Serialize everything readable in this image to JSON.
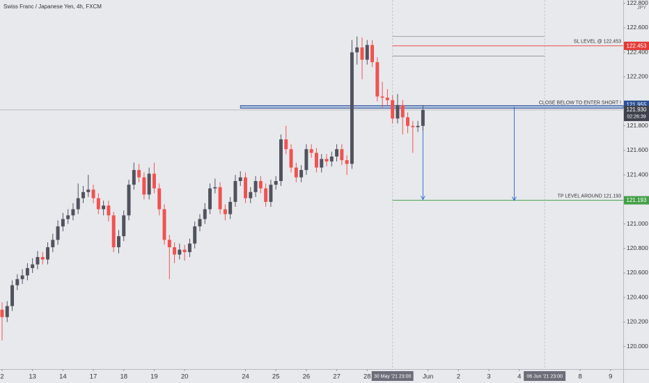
{
  "chart_data": {
    "type": "candlestick",
    "title": "Swiss Franc / Japanese Yen, 4h, FXCM",
    "currency": "JPY",
    "up_color": "#50535e",
    "down_color": "#ef5350",
    "open": [
      120.3,
      120.24,
      120.33,
      120.5,
      120.55,
      120.58,
      120.64,
      120.67,
      120.73,
      120.71,
      120.81,
      120.87,
      120.98,
      121.04,
      121.07,
      121.12,
      121.21,
      121.26,
      121.28,
      121.21,
      121.12,
      121.15,
      121.07,
      120.81,
      120.9,
      121.07,
      121.32,
      121.44,
      121.38,
      121.24,
      121.41,
      121.29,
      121.12,
      120.87,
      120.81,
      120.75,
      120.79,
      120.77,
      120.84,
      120.98,
      121.04,
      121.12,
      121.29,
      121.3,
      121.12,
      121.08,
      121.18,
      121.35,
      121.38,
      121.21,
      121.26,
      121.35,
      121.29,
      121.18,
      121.32,
      121.35,
      121.69,
      121.61,
      121.46,
      121.38,
      121.44,
      121.61,
      121.58,
      121.46,
      121.53,
      121.51,
      121.55,
      121.61,
      121.52,
      121.49,
      122.4,
      122.44,
      122.34,
      122.46,
      122.32,
      122.04,
      122.03,
      122.01,
      121.86,
      121.97,
      121.87,
      121.8,
      121.79,
      121.8
    ],
    "high": [
      120.36,
      120.37,
      120.54,
      120.59,
      120.63,
      120.68,
      120.72,
      120.78,
      120.77,
      120.85,
      120.92,
      121.03,
      121.09,
      121.12,
      121.17,
      121.33,
      121.31,
      121.4,
      121.32,
      121.25,
      121.19,
      121.19,
      121.1,
      120.95,
      121.11,
      121.36,
      121.5,
      121.49,
      121.42,
      121.46,
      121.5,
      121.33,
      121.16,
      120.91,
      120.85,
      120.84,
      120.83,
      120.88,
      121.02,
      121.08,
      121.17,
      121.33,
      121.37,
      121.34,
      121.16,
      121.22,
      121.4,
      121.43,
      121.42,
      121.3,
      121.39,
      121.39,
      121.33,
      121.36,
      121.39,
      121.73,
      121.8,
      121.65,
      121.5,
      121.48,
      121.65,
      121.65,
      121.62,
      121.57,
      121.57,
      121.59,
      121.65,
      121.65,
      121.56,
      122.5,
      122.53,
      122.52,
      122.5,
      122.5,
      122.36,
      122.16,
      122.1,
      122.05,
      122.06,
      122.01,
      121.91,
      121.84,
      121.84,
      121.97
    ],
    "low": [
      120.05,
      120.2,
      120.29,
      120.46,
      120.51,
      120.54,
      120.6,
      120.63,
      120.67,
      120.67,
      120.77,
      120.83,
      120.94,
      121.0,
      121.03,
      121.08,
      121.17,
      121.22,
      121.17,
      121.08,
      121.07,
      121.02,
      120.77,
      120.76,
      120.86,
      121.03,
      121.28,
      121.34,
      121.2,
      121.2,
      121.25,
      121.07,
      120.83,
      120.55,
      120.68,
      120.71,
      120.7,
      120.73,
      120.8,
      120.94,
      121.0,
      121.08,
      121.25,
      121.08,
      121.03,
      121.04,
      121.14,
      121.31,
      121.17,
      121.17,
      121.22,
      121.25,
      121.14,
      121.14,
      121.28,
      121.31,
      121.57,
      121.42,
      121.34,
      121.34,
      121.4,
      121.54,
      121.42,
      121.42,
      121.47,
      121.47,
      121.51,
      121.48,
      121.4,
      121.45,
      122.3,
      122.18,
      122.3,
      122.28,
      122.0,
      121.95,
      121.97,
      121.82,
      121.82,
      121.73,
      121.74,
      121.58,
      121.75,
      121.76
    ],
    "close": [
      120.24,
      120.33,
      120.5,
      120.55,
      120.58,
      120.64,
      120.67,
      120.73,
      120.71,
      120.81,
      120.87,
      120.98,
      121.04,
      121.07,
      121.12,
      121.21,
      121.26,
      121.28,
      121.21,
      121.12,
      121.15,
      121.07,
      120.81,
      120.9,
      121.07,
      121.32,
      121.44,
      121.38,
      121.24,
      121.41,
      121.29,
      121.12,
      120.87,
      120.81,
      120.75,
      120.79,
      120.77,
      120.84,
      120.98,
      121.04,
      121.12,
      121.29,
      121.3,
      121.12,
      121.08,
      121.18,
      121.35,
      121.38,
      121.21,
      121.26,
      121.35,
      121.29,
      121.18,
      121.32,
      121.35,
      121.69,
      121.61,
      121.46,
      121.38,
      121.44,
      121.61,
      121.58,
      121.46,
      121.53,
      121.51,
      121.55,
      121.61,
      121.52,
      121.49,
      122.4,
      122.44,
      122.34,
      122.46,
      122.32,
      122.04,
      122.03,
      122.01,
      121.86,
      121.97,
      121.87,
      121.8,
      121.79,
      121.8,
      121.93
    ],
    "xlim": [
      -0.41,
      122.5
    ],
    "ylim": [
      119.816,
      122.827
    ],
    "xticks": [
      {
        "value": 0,
        "label": "2"
      },
      {
        "value": 6,
        "label": "13"
      },
      {
        "value": 12,
        "label": "14"
      },
      {
        "value": 18,
        "label": "17"
      },
      {
        "value": 24,
        "label": "18"
      },
      {
        "value": 30,
        "label": "19"
      },
      {
        "value": 36,
        "label": "20"
      },
      {
        "value": 48,
        "label": "24"
      },
      {
        "value": 54,
        "label": "25"
      },
      {
        "value": 60,
        "label": "26"
      },
      {
        "value": 66,
        "label": "27"
      },
      {
        "value": 72,
        "label": "28"
      },
      {
        "value": 84,
        "label": "Jun"
      },
      {
        "value": 90,
        "label": "2"
      },
      {
        "value": 96,
        "label": "3"
      },
      {
        "value": 102,
        "label": "4"
      },
      {
        "value": 114,
        "label": "8"
      },
      {
        "value": 120,
        "label": "9"
      }
    ],
    "yticks": [
      {
        "value": 120.0,
        "label": "120.000"
      },
      {
        "value": 120.2,
        "label": "120.200"
      },
      {
        "value": 120.4,
        "label": "120.400"
      },
      {
        "value": 120.6,
        "label": "120.600"
      },
      {
        "value": 120.8,
        "label": "120.800"
      },
      {
        "value": 121.0,
        "label": "121.000"
      },
      {
        "value": 121.4,
        "label": "121.400"
      },
      {
        "value": 121.6,
        "label": "121.600"
      },
      {
        "value": 121.8,
        "label": "121.800"
      },
      {
        "value": 122.2,
        "label": "122.200"
      },
      {
        "value": 122.4,
        "label": "122.400"
      },
      {
        "value": 122.6,
        "label": "122.600"
      },
      {
        "value": 122.8,
        "label": "122.800"
      }
    ],
    "time_markers": [
      {
        "value": 77,
        "label": "30 May '21 23:00"
      },
      {
        "value": 107,
        "label": "06 Jun '21 23:00"
      }
    ],
    "range_lines": [
      122.53,
      122.37
    ],
    "levels": [
      {
        "label": "SL LEVEL @ 122.453",
        "value": 122.453,
        "color": "#e53935",
        "start": 77
      },
      {
        "label": "CLOSE BELOW TO ENTER SHORT !",
        "value": 121.955,
        "color": "#2a4f94",
        "start": 47
      },
      {
        "label": "TP LEVEL AROUND 121.193",
        "value": 121.193,
        "color": "#43a047",
        "start": 77
      }
    ],
    "last_price": {
      "value": 121.93,
      "label": "121.930"
    },
    "countdown": "02:26:39",
    "arrows": [
      {
        "x": 83,
        "from": 121.93,
        "to": 121.2
      },
      {
        "x": 101,
        "from": 121.955,
        "to": 121.193
      }
    ]
  }
}
